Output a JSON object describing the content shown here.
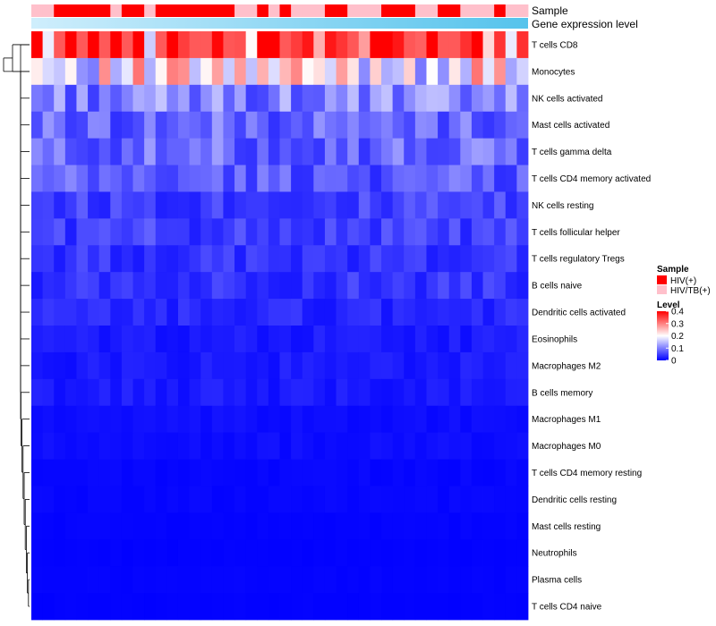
{
  "chart_data": {
    "type": "heatmap",
    "annotation_labels": [
      "Sample",
      "Gene expression level"
    ],
    "rows": [
      "T cells CD8",
      "Monocytes",
      "NK cells activated",
      "Mast cells activated",
      "T cells gamma delta",
      "T cells CD4 memory activated",
      "NK cells resting",
      "T cells follicular helper",
      "T cells regulatory  Tregs",
      "B cells naive",
      "Dendritic cells activated",
      "Eosinophils",
      "Macrophages M2",
      "B cells memory",
      "Macrophages M1",
      "Macrophages M0",
      "T cells CD4 memory resting",
      "Dendritic cells resting",
      "Mast cells resting",
      "Neutrophils",
      "Plasma cells",
      "T cells CD4 naive"
    ],
    "n_columns": 44,
    "sample_groups": [
      "HIV(+)",
      "HIV/TB(+)"
    ],
    "sample_colors": [
      "#ff0000",
      "#ffc0cb"
    ],
    "sample_assignments": [
      1,
      1,
      0,
      0,
      0,
      0,
      0,
      1,
      0,
      0,
      1,
      0,
      0,
      0,
      0,
      0,
      0,
      0,
      1,
      1,
      0,
      1,
      0,
      1,
      1,
      1,
      0,
      0,
      1,
      1,
      1,
      0,
      0,
      0,
      1,
      1,
      0,
      0,
      1,
      1,
      1,
      0,
      1,
      1
    ],
    "gene_expression_gradient": [
      "#cfeefc",
      "#55c3ec"
    ],
    "row_levels": [
      0.35,
      0.2,
      0.1,
      0.08,
      0.08,
      0.07,
      0.05,
      0.05,
      0.04,
      0.04,
      0.03,
      0.02,
      0.02,
      0.02,
      0.01,
      0.01,
      0.005,
      0.005,
      0.003,
      0.002,
      0.003,
      0.002
    ],
    "legend": {
      "sample_title": "Sample",
      "level_title": "Level",
      "level_ticks": [
        0.4,
        0.3,
        0.2,
        0.1,
        0
      ],
      "level_range": [
        0,
        0.4
      ],
      "level_colors": [
        "#0000ff",
        "#ffffff",
        "#ff0000"
      ]
    }
  }
}
